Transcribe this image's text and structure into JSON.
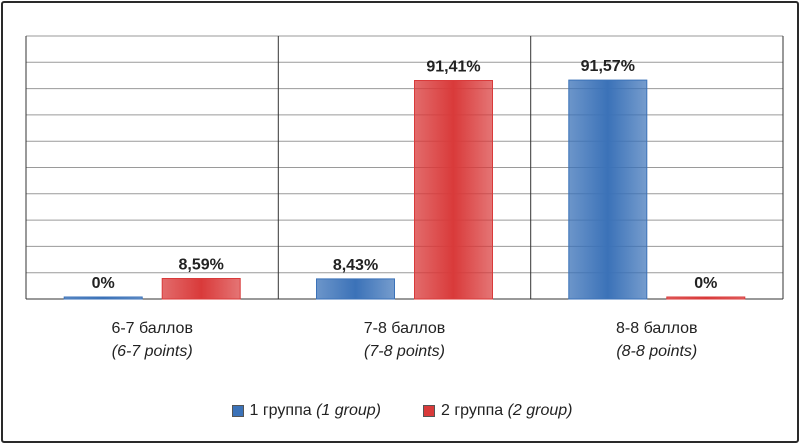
{
  "chart_data": {
    "type": "bar",
    "categories": [
      {
        "line1": "6-7 баллов",
        "line2": "(6-7 points)"
      },
      {
        "line1": "7-8 баллов",
        "line2": "(7-8 points)"
      },
      {
        "line1": "8-8 баллов",
        "line2": "(8-8 points)"
      }
    ],
    "series": [
      {
        "name": "1 группа",
        "name_alt": "(1 group)",
        "color": "#3b72b8",
        "values": [
          0,
          8.43,
          91.57
        ],
        "labels": [
          "0%",
          "8,43%",
          "91,57%"
        ]
      },
      {
        "name": "2 группа",
        "name_alt": "(2 group)",
        "color": "#d93a3a",
        "values": [
          8.59,
          91.41,
          0
        ],
        "labels": [
          "8,59%",
          "91,41%",
          "0%"
        ]
      }
    ],
    "ylim": [
      0,
      100
    ],
    "grid": true,
    "legend_position": "bottom"
  }
}
